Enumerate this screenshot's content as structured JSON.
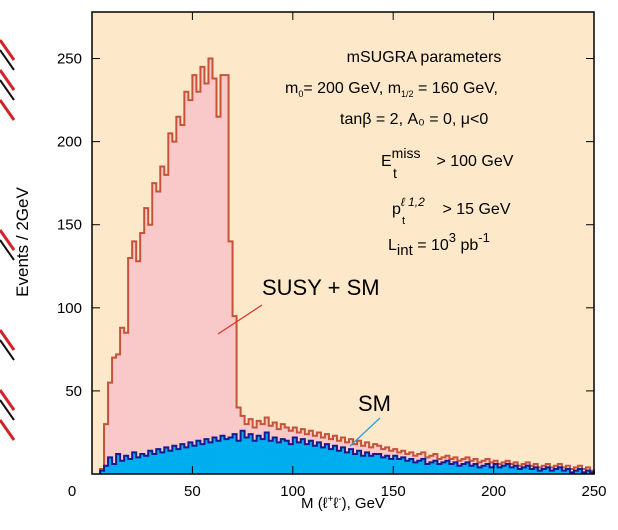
{
  "chart_data": {
    "type": "histogram",
    "y_label": "Events / 2GeV",
    "x_label": [
      "M  (ℓ",
      "+",
      "ℓ",
      "-",
      "), GeV"
    ],
    "xlim": [
      0,
      250
    ],
    "ylim": [
      0,
      278
    ],
    "xticks": [
      0,
      50,
      100,
      150,
      200,
      250
    ],
    "yticks": [
      50,
      100,
      150,
      200,
      250
    ],
    "background": "#fde9c9",
    "bins": [
      4,
      6,
      8,
      10,
      12,
      14,
      16,
      18,
      20,
      22,
      24,
      26,
      28,
      30,
      32,
      34,
      36,
      38,
      40,
      42,
      44,
      46,
      48,
      50,
      52,
      54,
      56,
      58,
      60,
      62,
      64,
      66,
      68,
      70,
      72,
      74,
      76,
      78,
      80,
      82,
      84,
      86,
      88,
      90,
      92,
      94,
      96,
      98,
      100,
      102,
      104,
      106,
      108,
      110,
      112,
      114,
      116,
      118,
      120,
      122,
      124,
      126,
      128,
      130,
      132,
      134,
      136,
      138,
      140,
      142,
      144,
      146,
      148,
      150,
      152,
      154,
      156,
      158,
      160,
      162,
      164,
      166,
      168,
      170,
      172,
      174,
      176,
      178,
      180,
      182,
      184,
      186,
      188,
      190,
      192,
      194,
      196,
      198,
      200,
      202,
      204,
      206,
      208,
      210,
      212,
      214,
      216,
      218,
      220,
      222,
      224,
      226,
      228,
      230,
      232,
      234,
      236,
      238,
      240,
      242,
      244,
      246,
      248,
      250
    ],
    "series": [
      {
        "name": "SUSY + SM",
        "color": "#f9c8c8",
        "edge_color": "#c4533a",
        "label_color": "#e03030",
        "values": [
          3,
          30,
          55,
          70,
          72,
          88,
          85,
          130,
          140,
          128,
          145,
          160,
          150,
          175,
          170,
          185,
          180,
          205,
          200,
          215,
          210,
          230,
          225,
          240,
          230,
          245,
          235,
          250,
          238,
          215,
          240,
          240,
          140,
          95,
          40,
          35,
          30,
          33,
          28,
          32,
          30,
          34,
          29,
          31,
          27,
          30,
          28,
          26,
          28,
          25,
          27,
          24,
          26,
          23,
          25,
          22,
          24,
          21,
          23,
          20,
          22,
          19,
          21,
          18,
          20,
          17,
          19,
          16,
          18,
          17,
          15,
          16,
          14,
          15,
          13,
          14,
          12,
          13,
          11,
          12,
          13,
          10,
          11,
          12,
          9,
          10,
          11,
          9,
          10,
          8,
          9,
          10,
          8,
          9,
          7,
          8,
          9,
          7,
          8,
          6,
          7,
          8,
          6,
          7,
          5,
          6,
          7,
          5,
          6,
          4,
          5,
          6,
          4,
          5,
          6,
          4,
          5,
          3,
          4,
          5,
          3,
          4,
          2
        ]
      },
      {
        "name": "SM",
        "color": "#00aeef",
        "edge_color": "#1a1a8c",
        "label_color": "#1aa0e0",
        "values": [
          2,
          5,
          10,
          6,
          12,
          8,
          11,
          9,
          13,
          10,
          12,
          11,
          14,
          12,
          15,
          13,
          16,
          14,
          17,
          15,
          18,
          16,
          19,
          17,
          20,
          18,
          21,
          19,
          22,
          20,
          23,
          21,
          22,
          24,
          20,
          26,
          22,
          24,
          20,
          23,
          21,
          25,
          20,
          22,
          19,
          21,
          20,
          18,
          22,
          19,
          21,
          18,
          20,
          17,
          19,
          16,
          18,
          15,
          17,
          14,
          16,
          13,
          15,
          12,
          14,
          11,
          13,
          11,
          12,
          12,
          10,
          11,
          9,
          11,
          9,
          10,
          8,
          9,
          7,
          8,
          9,
          6,
          7,
          8,
          6,
          7,
          8,
          6,
          7,
          5,
          6,
          7,
          5,
          6,
          4,
          5,
          6,
          4,
          6,
          4,
          5,
          6,
          4,
          5,
          3,
          4,
          5,
          3,
          4,
          2,
          3,
          4,
          2,
          3,
          4,
          2,
          3,
          1,
          2,
          3,
          1,
          2,
          1
        ]
      }
    ],
    "annotations": {
      "params_title": "mSUGRA parameters",
      "params_line1": [
        "m",
        "0",
        "= 200 GeV, m",
        "1/2",
        " = 160 GeV,"
      ],
      "params_line2": "tanβ = 2,  A₀ = 0,  μ<0",
      "cut_met": [
        "E",
        "miss",
        "t",
        " > 100 GeV"
      ],
      "cut_pt": [
        "p",
        "ℓ 1,2",
        "t",
        " > 15 GeV"
      ],
      "lumi": [
        "L",
        "int",
        " = 10",
        "3",
        "  pb",
        "-1"
      ]
    }
  }
}
